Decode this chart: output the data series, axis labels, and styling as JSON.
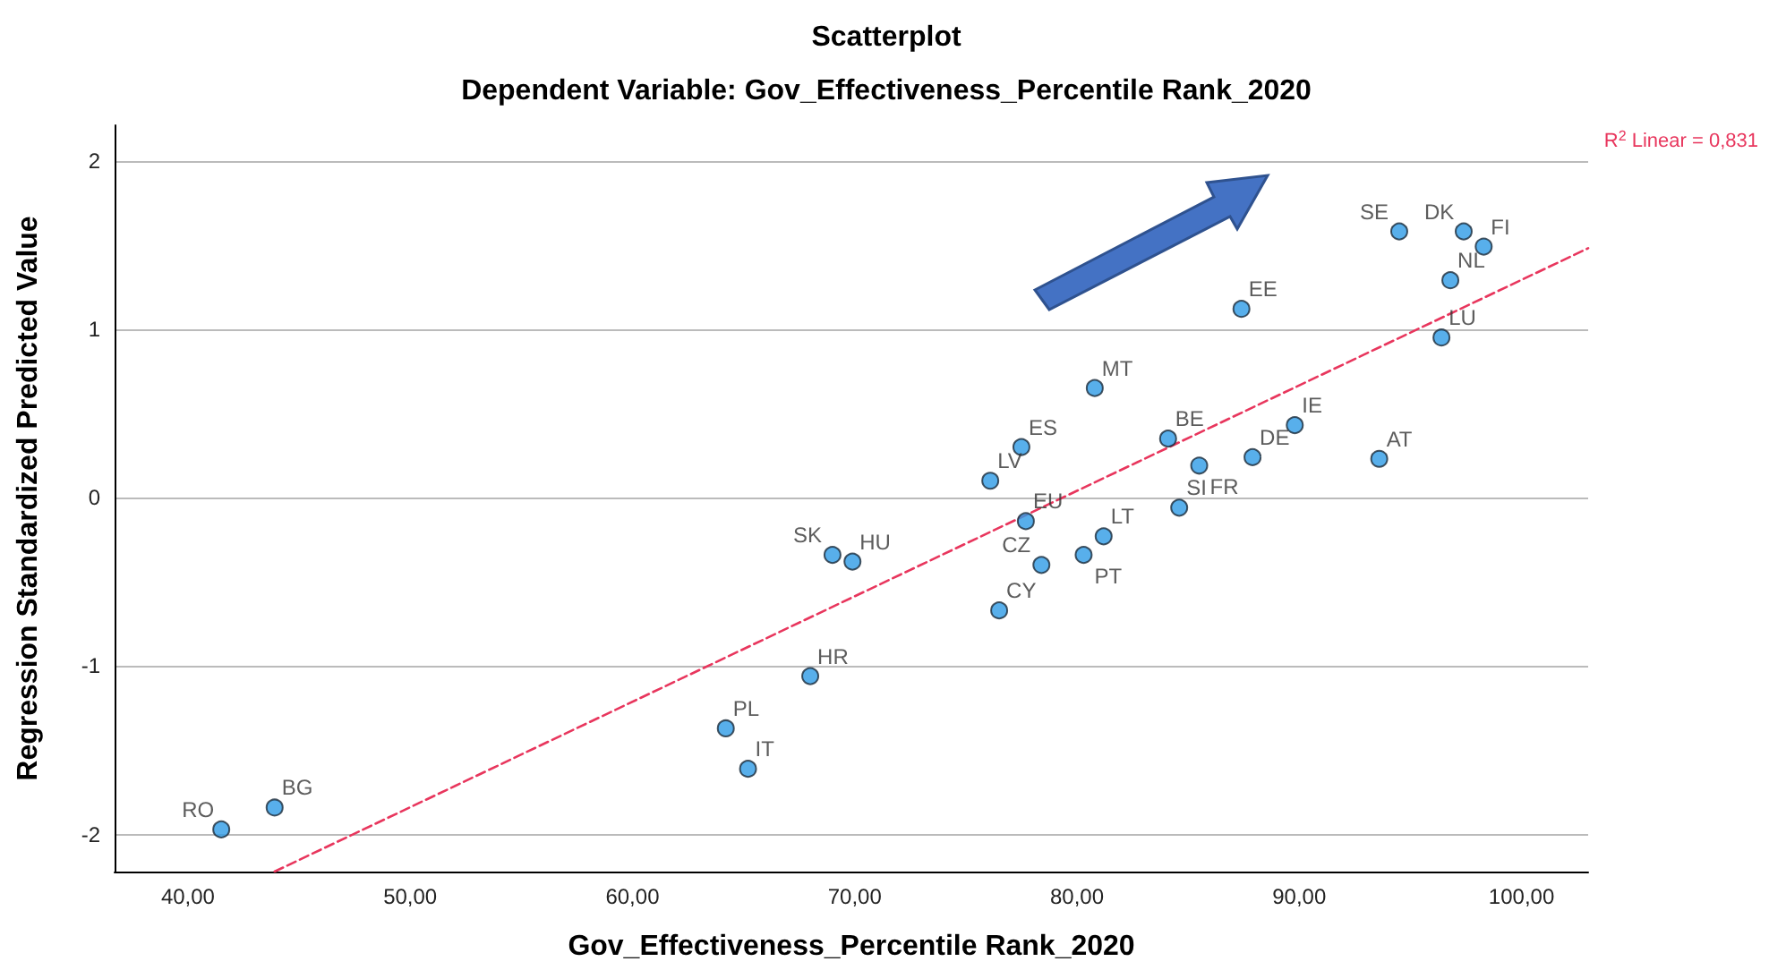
{
  "chart_data": {
    "type": "scatter",
    "title": "Scatterplot",
    "subtitle": "Dependent Variable: Gov_Effectiveness_Percentile Rank_2020",
    "xlabel": "Gov_Effectiveness_Percentile Rank_2020",
    "ylabel": "Regression Standardized Predicted Value",
    "xlim": [
      36.7,
      103
    ],
    "ylim": [
      -2.22,
      2.21
    ],
    "xticks": [
      {
        "value": 40,
        "label": "40,00"
      },
      {
        "value": 50,
        "label": "50,00"
      },
      {
        "value": 60,
        "label": "60,00"
      },
      {
        "value": 70,
        "label": "70,00"
      },
      {
        "value": 80,
        "label": "80,00"
      },
      {
        "value": 90,
        "label": "90,00"
      },
      {
        "value": 100,
        "label": "100,00"
      }
    ],
    "yticks": [
      -2,
      -1,
      0,
      1,
      2
    ],
    "grid": "y",
    "marker": "circle",
    "series": [
      {
        "color": "#2e9be6",
        "x": [
          41.5,
          43.9,
          64.2,
          65.2,
          68.0,
          69.0,
          69.9,
          76.1,
          76.5,
          77.5,
          77.7,
          78.4,
          80.3,
          80.8,
          81.2,
          84.1,
          84.6,
          85.5,
          87.4,
          87.9,
          89.8,
          93.6,
          94.5,
          96.4,
          96.8,
          97.4,
          98.3
        ],
        "values": [
          -1.97,
          -1.84,
          -1.37,
          -1.61,
          -1.06,
          -0.34,
          -0.38,
          0.1,
          -0.67,
          0.3,
          -0.14,
          -0.4,
          -0.34,
          0.65,
          -0.23,
          0.35,
          -0.06,
          0.19,
          1.12,
          0.24,
          0.43,
          0.23,
          1.58,
          0.95,
          1.29,
          1.58,
          1.49
        ]
      },
      {
        "type": "line",
        "color": "#e8365d",
        "x": [
          43.9,
          103
        ],
        "values": [
          -2.22,
          1.48
        ],
        "line_style": "dashed",
        "marker": "none"
      }
    ],
    "annotations": [
      {
        "text": "RO",
        "x": 41.5,
        "y": -1.97
      },
      {
        "text": "BG",
        "x": 43.9,
        "y": -1.84
      },
      {
        "text": "PL",
        "x": 64.2,
        "y": -1.37
      },
      {
        "text": "IT",
        "x": 65.2,
        "y": -1.61
      },
      {
        "text": "HR",
        "x": 68.0,
        "y": -1.06
      },
      {
        "text": "SK",
        "x": 69.0,
        "y": -0.34
      },
      {
        "text": "HU",
        "x": 69.9,
        "y": -0.38
      },
      {
        "text": "LV",
        "x": 76.1,
        "y": 0.1
      },
      {
        "text": "CY",
        "x": 76.5,
        "y": -0.67
      },
      {
        "text": "ES",
        "x": 77.5,
        "y": 0.3
      },
      {
        "text": "EU",
        "x": 77.7,
        "y": -0.14
      },
      {
        "text": "CZ",
        "x": 78.4,
        "y": -0.4
      },
      {
        "text": "PT",
        "x": 80.3,
        "y": -0.34
      },
      {
        "text": "MT",
        "x": 80.8,
        "y": 0.65
      },
      {
        "text": "LT",
        "x": 81.2,
        "y": -0.23
      },
      {
        "text": "BE",
        "x": 84.1,
        "y": 0.35
      },
      {
        "text": "SI",
        "x": 84.6,
        "y": -0.06
      },
      {
        "text": "FR",
        "x": 85.5,
        "y": 0.19
      },
      {
        "text": "EE",
        "x": 87.4,
        "y": 1.12
      },
      {
        "text": "DE",
        "x": 87.9,
        "y": 0.24
      },
      {
        "text": "IE",
        "x": 89.8,
        "y": 0.43
      },
      {
        "text": "AT",
        "x": 93.6,
        "y": 0.23
      },
      {
        "text": "SE",
        "x": 94.5,
        "y": 1.58
      },
      {
        "text": "LU",
        "x": 96.4,
        "y": 0.95
      },
      {
        "text": "NL",
        "x": 96.8,
        "y": 1.29
      },
      {
        "text": "DK",
        "x": 97.4,
        "y": 1.58
      },
      {
        "text": "FI",
        "x": 98.3,
        "y": 1.49
      },
      "R$^{2}$ Linear = 0,831"
    ]
  }
}
